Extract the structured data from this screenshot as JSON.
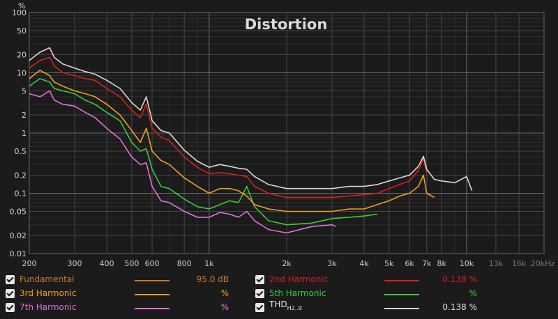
{
  "chart_data": {
    "type": "line",
    "title": "Distortion",
    "ylabel": "%",
    "xlabel": "",
    "xscale": "log",
    "yscale": "log",
    "xlim": [
      200,
      20000
    ],
    "ylim": [
      0.01,
      100
    ],
    "grid": true,
    "x_ticks": [
      {
        "value": 200,
        "label": "200"
      },
      {
        "value": 300,
        "label": "300"
      },
      {
        "value": 400,
        "label": "400"
      },
      {
        "value": 500,
        "label": "500"
      },
      {
        "value": 600,
        "label": "600"
      },
      {
        "value": 800,
        "label": "800"
      },
      {
        "value": 1000,
        "label": "1k"
      },
      {
        "value": 2000,
        "label": "2k"
      },
      {
        "value": 3000,
        "label": "3k"
      },
      {
        "value": 4000,
        "label": "4k"
      },
      {
        "value": 5000,
        "label": "5k"
      },
      {
        "value": 6000,
        "label": "6k"
      },
      {
        "value": 7000,
        "label": "7k"
      },
      {
        "value": 8000,
        "label": "8k"
      },
      {
        "value": 10000,
        "label": "10k"
      },
      {
        "value": 13000,
        "label": "13k"
      },
      {
        "value": 16000,
        "label": "16k"
      },
      {
        "value": 20000,
        "label": "20kHz"
      }
    ],
    "y_ticks": [
      {
        "value": 100,
        "label": "100"
      },
      {
        "value": 50,
        "label": "50"
      },
      {
        "value": 20,
        "label": "20"
      },
      {
        "value": 10,
        "label": "10"
      },
      {
        "value": 5,
        "label": "5"
      },
      {
        "value": 2,
        "label": "2"
      },
      {
        "value": 1,
        "label": "1"
      },
      {
        "value": 0.5,
        "label": "0.5"
      },
      {
        "value": 0.2,
        "label": "0.2"
      },
      {
        "value": 0.1,
        "label": "0.1"
      },
      {
        "value": 0.05,
        "label": "0.05"
      },
      {
        "value": 0.02,
        "label": "0.02"
      },
      {
        "value": 0.01,
        "label": "0.01"
      }
    ],
    "series": [
      {
        "name": "THD H2..9",
        "color": "#d8d8d8",
        "x": [
          200,
          220,
          240,
          250,
          270,
          300,
          330,
          360,
          400,
          450,
          500,
          540,
          570,
          600,
          650,
          700,
          800,
          900,
          1000,
          1100,
          1200,
          1300,
          1400,
          1500,
          1700,
          2000,
          2500,
          3000,
          3500,
          4000,
          4500,
          5000,
          5500,
          6000,
          6500,
          6800,
          7000,
          7500,
          8000,
          9000,
          10000,
          10500
        ],
        "y": [
          16,
          22,
          26,
          18,
          14,
          12,
          10.5,
          9.5,
          7.5,
          5.5,
          3.2,
          2.4,
          4.0,
          1.6,
          1.1,
          1.0,
          0.52,
          0.34,
          0.27,
          0.3,
          0.28,
          0.26,
          0.25,
          0.19,
          0.14,
          0.12,
          0.12,
          0.12,
          0.13,
          0.13,
          0.14,
          0.16,
          0.18,
          0.2,
          0.28,
          0.41,
          0.25,
          0.17,
          0.16,
          0.15,
          0.19,
          0.11
        ]
      },
      {
        "name": "2nd Harmonic",
        "color": "#d81e1e",
        "x": [
          200,
          220,
          240,
          250,
          270,
          300,
          330,
          360,
          400,
          450,
          500,
          540,
          570,
          600,
          650,
          700,
          800,
          900,
          1000,
          1100,
          1200,
          1300,
          1400,
          1500,
          1700,
          2000,
          2500,
          3000,
          3500,
          4000,
          4500,
          5000,
          5500,
          6000,
          6500,
          6800,
          7000
        ],
        "y": [
          12,
          16,
          18,
          13,
          10,
          9,
          8,
          7.5,
          5.5,
          4,
          2.4,
          1.8,
          3.0,
          1.2,
          0.85,
          0.75,
          0.4,
          0.27,
          0.21,
          0.22,
          0.21,
          0.2,
          0.19,
          0.13,
          0.1,
          0.085,
          0.085,
          0.085,
          0.09,
          0.095,
          0.1,
          0.12,
          0.14,
          0.16,
          0.24,
          0.38,
          0.22
        ]
      },
      {
        "name": "3rd Harmonic",
        "color": "#f0a020",
        "x": [
          200,
          220,
          240,
          250,
          270,
          300,
          330,
          360,
          400,
          450,
          500,
          540,
          570,
          600,
          650,
          700,
          800,
          900,
          1000,
          1100,
          1200,
          1300,
          1400,
          1500,
          1700,
          2000,
          2500,
          3000,
          3500,
          4000,
          4500,
          5000,
          5500,
          6000,
          6500,
          6800,
          7000,
          7500
        ],
        "y": [
          8,
          11,
          9,
          7,
          6,
          5,
          4.5,
          4,
          3,
          2,
          1.1,
          0.7,
          1.2,
          0.5,
          0.35,
          0.3,
          0.18,
          0.13,
          0.1,
          0.12,
          0.12,
          0.11,
          0.09,
          0.065,
          0.055,
          0.05,
          0.05,
          0.05,
          0.055,
          0.055,
          0.065,
          0.075,
          0.09,
          0.1,
          0.13,
          0.2,
          0.1,
          0.085
        ]
      },
      {
        "name": "5th Harmonic",
        "color": "#3ec83e",
        "x": [
          200,
          220,
          240,
          250,
          270,
          300,
          330,
          360,
          400,
          450,
          500,
          540,
          570,
          600,
          650,
          700,
          800,
          900,
          1000,
          1100,
          1200,
          1300,
          1400,
          1500,
          1700,
          2000,
          2500,
          3000,
          3500,
          4000,
          4500
        ],
        "y": [
          6,
          8,
          7,
          5.5,
          5,
          4.5,
          3.5,
          3,
          2.2,
          1.6,
          0.7,
          0.5,
          0.55,
          0.25,
          0.13,
          0.12,
          0.08,
          0.06,
          0.055,
          0.065,
          0.075,
          0.07,
          0.13,
          0.06,
          0.035,
          0.03,
          0.032,
          0.038,
          0.04,
          0.042,
          0.045
        ]
      },
      {
        "name": "7th Harmonic",
        "color": "#e070e0",
        "x": [
          200,
          220,
          240,
          250,
          270,
          300,
          330,
          360,
          400,
          450,
          500,
          540,
          570,
          600,
          650,
          700,
          800,
          900,
          1000,
          1100,
          1200,
          1300,
          1400,
          1500,
          1700,
          2000,
          2500,
          3000,
          3100
        ],
        "y": [
          4.5,
          4,
          5,
          3.5,
          3,
          2.8,
          2.2,
          1.8,
          1.2,
          0.8,
          0.4,
          0.3,
          0.32,
          0.13,
          0.075,
          0.07,
          0.05,
          0.04,
          0.04,
          0.048,
          0.045,
          0.04,
          0.05,
          0.035,
          0.025,
          0.022,
          0.028,
          0.03,
          0.028
        ]
      }
    ]
  },
  "legend": {
    "items": [
      {
        "label": "Fundamental",
        "color": "#c8782a",
        "value": "95.0 dB"
      },
      {
        "label": "2nd Harmonic",
        "color": "#d81e1e",
        "value": "0.138 %"
      },
      {
        "label": "3rd Harmonic",
        "color": "#f0a020",
        "value": "%"
      },
      {
        "label": "5th Harmonic",
        "color": "#3ec83e",
        "value": "%"
      },
      {
        "label": "7th Harmonic",
        "color": "#e070e0",
        "value": "%"
      },
      {
        "label": "THD",
        "label_sub": "H2..9",
        "color": "#d8d8d8",
        "value": "0.138 %"
      }
    ]
  }
}
